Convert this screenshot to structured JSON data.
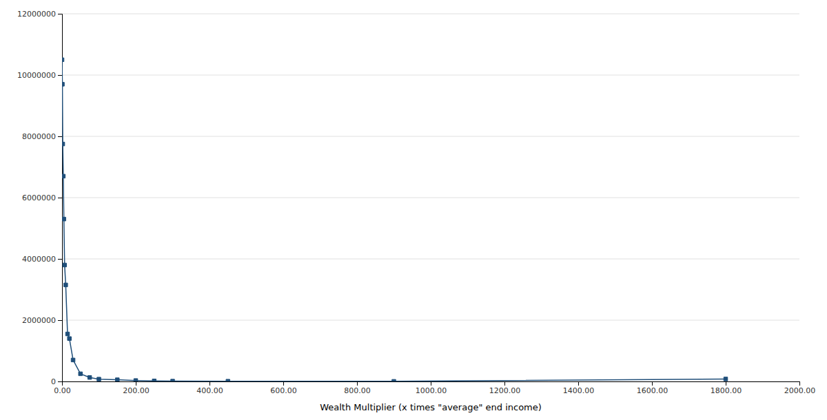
{
  "chart_data": {
    "type": "line",
    "x_label": "Wealth Multiplier (x times \"average\" end income)",
    "x": [
      0.0,
      1.0,
      2.0,
      3.5,
      5.0,
      7.0,
      10.0,
      15.0,
      20.0,
      30.0,
      50.0,
      75.0,
      100.0,
      150.0,
      200.0,
      250.0,
      300.0,
      450.0,
      900.0,
      1800.0
    ],
    "values": [
      10500000,
      9700000,
      7750000,
      6700000,
      5300000,
      3800000,
      3150000,
      1550000,
      1400000,
      700000,
      250000,
      130000,
      75000,
      55000,
      30000,
      18000,
      10000,
      7000,
      3000,
      80000
    ],
    "color": "#1f4e79",
    "marker": "square",
    "xlim": [
      0,
      2000
    ],
    "ylim": [
      0,
      12000000
    ],
    "xticks": [
      {
        "value": 0,
        "label": "0.00"
      },
      {
        "value": 200,
        "label": "200.00"
      },
      {
        "value": 400,
        "label": "400.00"
      },
      {
        "value": 600,
        "label": "600.00"
      },
      {
        "value": 800,
        "label": "800.00"
      },
      {
        "value": 1000,
        "label": "1000.00"
      },
      {
        "value": 1200,
        "label": "1200.00"
      },
      {
        "value": 1400,
        "label": "1400.00"
      },
      {
        "value": 1600,
        "label": "1600.00"
      },
      {
        "value": 1800,
        "label": "1800.00"
      },
      {
        "value": 2000,
        "label": "2000.00"
      }
    ],
    "yticks": [
      0,
      2000000,
      4000000,
      6000000,
      8000000,
      10000000,
      12000000
    ],
    "grid": "y"
  }
}
